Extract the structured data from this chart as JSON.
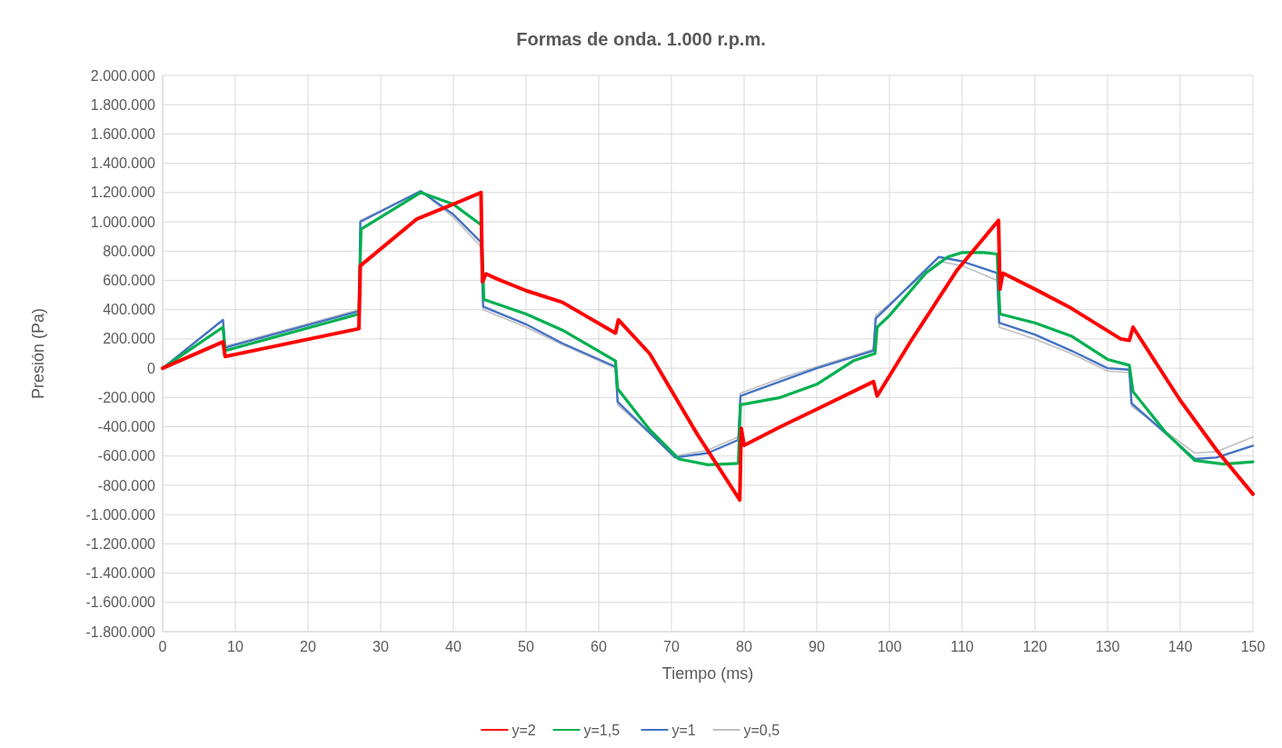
{
  "chart_data": {
    "type": "line",
    "title": "Formas de onda. 1.000 r.p.m.",
    "xlabel": "Tiempo (ms)",
    "ylabel": "Presión (Pa)",
    "xlim": [
      0,
      150
    ],
    "xticks": [
      0,
      10,
      20,
      30,
      40,
      50,
      60,
      70,
      80,
      90,
      100,
      110,
      120,
      130,
      140,
      150
    ],
    "ylim": [
      -1800000,
      2000000
    ],
    "yticks": [
      {
        "value": -1800000,
        "label": "-1.800.000"
      },
      {
        "value": -1600000,
        "label": "-1.600.000"
      },
      {
        "value": -1400000,
        "label": "-1.400.000"
      },
      {
        "value": -1200000,
        "label": "-1.200.000"
      },
      {
        "value": -1000000,
        "label": "-1.000.000"
      },
      {
        "value": -800000,
        "label": "-800.000"
      },
      {
        "value": -600000,
        "label": "-600.000"
      },
      {
        "value": -400000,
        "label": "-400.000"
      },
      {
        "value": -200000,
        "label": "-200.000"
      },
      0,
      {
        "value": 200000,
        "label": "200.000"
      },
      {
        "value": 400000,
        "label": "400.000"
      },
      {
        "value": 600000,
        "label": "600.000"
      },
      {
        "value": 800000,
        "label": "800.000"
      },
      {
        "value": 1000000,
        "label": "1.000.000"
      },
      {
        "value": 1200000,
        "label": "1.200.000"
      },
      {
        "value": 1400000,
        "label": "1.400.000"
      },
      {
        "value": 1600000,
        "label": "1.600.000"
      },
      {
        "value": 1800000,
        "label": "1.800.000"
      },
      {
        "value": 2000000,
        "label": "2.000.000"
      }
    ],
    "grid": true,
    "legend": "bottom",
    "marker": "none",
    "line_style": "solid",
    "series": [
      {
        "name": "y=2",
        "color": "#ff0000",
        "x": [
          0,
          8.3,
          8.6,
          27,
          27.2,
          35,
          40,
          43.8,
          44,
          44.5,
          46,
          50,
          55,
          62.3,
          62.7,
          67,
          73.6,
          79.4,
          79.6,
          80,
          85,
          90,
          97.8,
          98.3,
          103,
          109.3,
          115,
          115.2,
          115.6,
          120,
          125,
          131.8,
          133,
          133.5,
          140,
          145,
          150
        ],
        "values": [
          0,
          180000,
          80000,
          270000,
          700000,
          1020000,
          1120000,
          1200000,
          590000,
          645000,
          610000,
          530000,
          450000,
          240000,
          330000,
          100000,
          -455000,
          -900000,
          -410000,
          -527000,
          -400000,
          -280000,
          -92000,
          -190000,
          190000,
          670000,
          1010000,
          540000,
          650000,
          540000,
          410000,
          200000,
          190000,
          280000,
          -220000,
          -560000,
          -860000
        ]
      },
      {
        "name": "y=1,5",
        "color": "#00b050",
        "x": [
          0,
          8.3,
          8.6,
          27,
          27.3,
          35.5,
          40,
          43.8,
          44.2,
          50,
          55,
          62.3,
          62.6,
          67,
          71,
          75,
          79.2,
          79.5,
          85,
          90,
          95,
          98,
          98.3,
          100,
          105,
          108,
          110,
          113,
          114.8,
          115.2,
          120,
          125,
          130,
          133,
          133.5,
          138,
          142,
          146,
          150
        ],
        "values": [
          0,
          280000,
          120000,
          370000,
          950000,
          1200000,
          1120000,
          980000,
          470000,
          370000,
          260000,
          50000,
          -140000,
          -420000,
          -620000,
          -660000,
          -650000,
          -250000,
          -200000,
          -110000,
          50000,
          100000,
          280000,
          360000,
          650000,
          760000,
          790000,
          790000,
          780000,
          370000,
          310000,
          220000,
          60000,
          20000,
          -160000,
          -440000,
          -630000,
          -655000,
          -640000
        ]
      },
      {
        "name": "y=1",
        "color": "#4472c4",
        "x": [
          0,
          8.3,
          8.6,
          27,
          27.2,
          35.5,
          40,
          43.8,
          44.1,
          50,
          55,
          62.3,
          62.6,
          70.5,
          75,
          79.2,
          79.5,
          85,
          90,
          97.8,
          98.1,
          100,
          106.8,
          110,
          114.8,
          115.1,
          120,
          125,
          130,
          133,
          133.3,
          142,
          145,
          150
        ],
        "values": [
          0,
          330000,
          140000,
          390000,
          1000000,
          1210000,
          1050000,
          860000,
          420000,
          300000,
          170000,
          10000,
          -230000,
          -610000,
          -580000,
          -490000,
          -190000,
          -90000,
          0,
          120000,
          340000,
          430000,
          760000,
          730000,
          650000,
          310000,
          230000,
          120000,
          0,
          -10000,
          -240000,
          -620000,
          -610000,
          -530000
        ]
      },
      {
        "name": "y=0,5",
        "color": "#bfbfbf",
        "x": [
          0,
          8.3,
          8.6,
          27,
          27.2,
          35.5,
          40,
          43.8,
          44.1,
          50,
          55,
          62.3,
          62.6,
          70.5,
          75,
          79.2,
          79.5,
          85,
          90,
          97.8,
          98.1,
          100,
          106.8,
          110,
          114.8,
          115.1,
          120,
          125,
          130,
          133,
          133.3,
          142,
          145,
          150
        ],
        "values": [
          0,
          330000,
          150000,
          400000,
          1010000,
          1210000,
          1030000,
          830000,
          400000,
          280000,
          160000,
          0,
          -250000,
          -600000,
          -560000,
          -470000,
          -170000,
          -70000,
          10000,
          130000,
          360000,
          440000,
          730000,
          700000,
          600000,
          280000,
          200000,
          100000,
          -20000,
          -30000,
          -260000,
          -580000,
          -570000,
          -470000
        ]
      }
    ]
  }
}
